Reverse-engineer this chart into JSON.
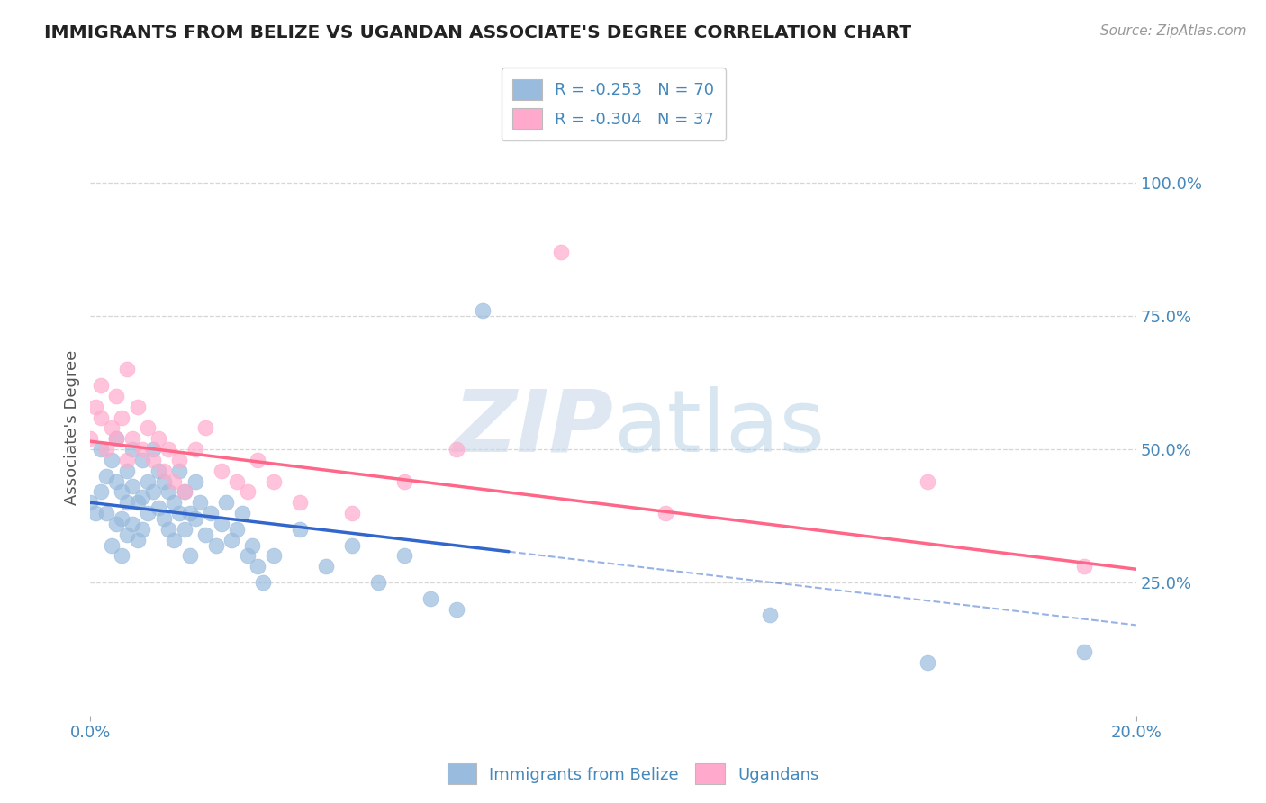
{
  "title": "IMMIGRANTS FROM BELIZE VS UGANDAN ASSOCIATE'S DEGREE CORRELATION CHART",
  "source": "Source: ZipAtlas.com",
  "ylabel": "Associate's Degree",
  "r1": -0.253,
  "n1": 70,
  "r2": -0.304,
  "n2": 37,
  "legend_label1": "Immigrants from Belize",
  "legend_label2": "Ugandans",
  "color_blue": "#99BBDD",
  "color_pink": "#FFAACC",
  "color_blue_line": "#3366CC",
  "color_pink_line": "#FF6688",
  "color_text": "#4488BB",
  "xlim": [
    0.0,
    0.2
  ],
  "ylim": [
    0.0,
    1.08
  ],
  "yticks": [
    0.25,
    0.5,
    0.75,
    1.0
  ],
  "ytick_labels": [
    "25.0%",
    "50.0%",
    "75.0%",
    "100.0%"
  ],
  "xticks": [
    0.0,
    0.2
  ],
  "xtick_labels": [
    "0.0%",
    "20.0%"
  ],
  "blue_line_x": [
    0.0,
    0.2
  ],
  "blue_line_y": [
    0.4,
    0.17
  ],
  "blue_line_solid_end": 0.08,
  "pink_line_x": [
    0.0,
    0.2
  ],
  "pink_line_y": [
    0.515,
    0.275
  ],
  "blue_x": [
    0.0,
    0.001,
    0.002,
    0.002,
    0.003,
    0.003,
    0.004,
    0.004,
    0.005,
    0.005,
    0.005,
    0.006,
    0.006,
    0.006,
    0.007,
    0.007,
    0.007,
    0.008,
    0.008,
    0.008,
    0.009,
    0.009,
    0.01,
    0.01,
    0.01,
    0.011,
    0.011,
    0.012,
    0.012,
    0.013,
    0.013,
    0.014,
    0.014,
    0.015,
    0.015,
    0.016,
    0.016,
    0.017,
    0.017,
    0.018,
    0.018,
    0.019,
    0.019,
    0.02,
    0.02,
    0.021,
    0.022,
    0.023,
    0.024,
    0.025,
    0.026,
    0.027,
    0.028,
    0.029,
    0.03,
    0.031,
    0.032,
    0.033,
    0.035,
    0.04,
    0.045,
    0.05,
    0.055,
    0.06,
    0.065,
    0.07,
    0.075,
    0.13,
    0.16,
    0.19
  ],
  "blue_y": [
    0.4,
    0.38,
    0.5,
    0.42,
    0.45,
    0.38,
    0.48,
    0.32,
    0.44,
    0.36,
    0.52,
    0.42,
    0.37,
    0.3,
    0.46,
    0.4,
    0.34,
    0.5,
    0.43,
    0.36,
    0.4,
    0.33,
    0.48,
    0.41,
    0.35,
    0.44,
    0.38,
    0.5,
    0.42,
    0.46,
    0.39,
    0.44,
    0.37,
    0.42,
    0.35,
    0.4,
    0.33,
    0.46,
    0.38,
    0.42,
    0.35,
    0.38,
    0.3,
    0.44,
    0.37,
    0.4,
    0.34,
    0.38,
    0.32,
    0.36,
    0.4,
    0.33,
    0.35,
    0.38,
    0.3,
    0.32,
    0.28,
    0.25,
    0.3,
    0.35,
    0.28,
    0.32,
    0.25,
    0.3,
    0.22,
    0.2,
    0.76,
    0.19,
    0.1,
    0.12
  ],
  "pink_x": [
    0.0,
    0.001,
    0.002,
    0.002,
    0.003,
    0.004,
    0.005,
    0.005,
    0.006,
    0.007,
    0.007,
    0.008,
    0.009,
    0.01,
    0.011,
    0.012,
    0.013,
    0.014,
    0.015,
    0.016,
    0.017,
    0.018,
    0.02,
    0.022,
    0.025,
    0.028,
    0.03,
    0.032,
    0.035,
    0.04,
    0.05,
    0.06,
    0.07,
    0.09,
    0.11,
    0.16,
    0.19
  ],
  "pink_y": [
    0.52,
    0.58,
    0.62,
    0.56,
    0.5,
    0.54,
    0.6,
    0.52,
    0.56,
    0.65,
    0.48,
    0.52,
    0.58,
    0.5,
    0.54,
    0.48,
    0.52,
    0.46,
    0.5,
    0.44,
    0.48,
    0.42,
    0.5,
    0.54,
    0.46,
    0.44,
    0.42,
    0.48,
    0.44,
    0.4,
    0.38,
    0.44,
    0.5,
    0.87,
    0.38,
    0.44,
    0.28
  ]
}
